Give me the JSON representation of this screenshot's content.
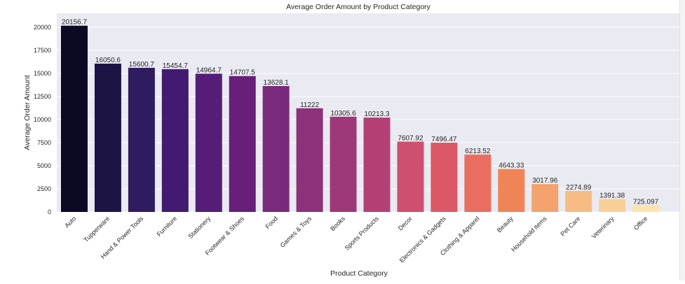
{
  "chart_data": {
    "type": "bar",
    "title": "Average Order Amount by Product Category",
    "xlabel": "Product Category",
    "ylabel": "Average Order Amount",
    "ylim": [
      0,
      21500
    ],
    "yticks": [
      0,
      2500,
      5000,
      7500,
      10000,
      12500,
      15000,
      17500,
      20000
    ],
    "grid": true,
    "categories": [
      "Auto",
      "Tupperware",
      "Hand & Power Tools",
      "Furniture",
      "Stationery",
      "Footwear & Shoes",
      "Food",
      "Games & Toys",
      "Books",
      "Sports Products",
      "Decor",
      "Electronics & Gadgets",
      "Clothing & Apparel",
      "Beauty",
      "Household items",
      "Pet Care",
      "Veterinary",
      "Office"
    ],
    "values": [
      20156.7,
      16050.6,
      15600.7,
      15454.7,
      14964.7,
      14707.5,
      13628.1,
      11222,
      10305.6,
      10213.3,
      7607.92,
      7496.47,
      6213.52,
      4643.33,
      3017.96,
      2274.89,
      1391.38,
      725.097
    ],
    "data_labels": [
      "20156.7",
      "16050.6",
      "15600.7",
      "15454.7",
      "14964.7",
      "14707.5",
      "13628.1",
      "11222",
      "10305.6",
      "10213.3",
      "7607.92",
      "7496.47",
      "6213.52",
      "4643.33",
      "3017.96",
      "2274.89",
      "1391.38",
      "725.097"
    ],
    "colors": [
      "#0b0924",
      "#1d1446",
      "#2f1b5f",
      "#421a72",
      "#551d77",
      "#671f7a",
      "#7a2a7b",
      "#8d317a",
      "#9f3878",
      "#b34074",
      "#cf4f6f",
      "#dc5867",
      "#e96e5f",
      "#ef8556",
      "#f4a36e",
      "#f7bb84",
      "#f9cf98",
      "#fbe3ad"
    ],
    "plot_background": "#eaeaf2",
    "grid_color": "#ffffff"
  }
}
